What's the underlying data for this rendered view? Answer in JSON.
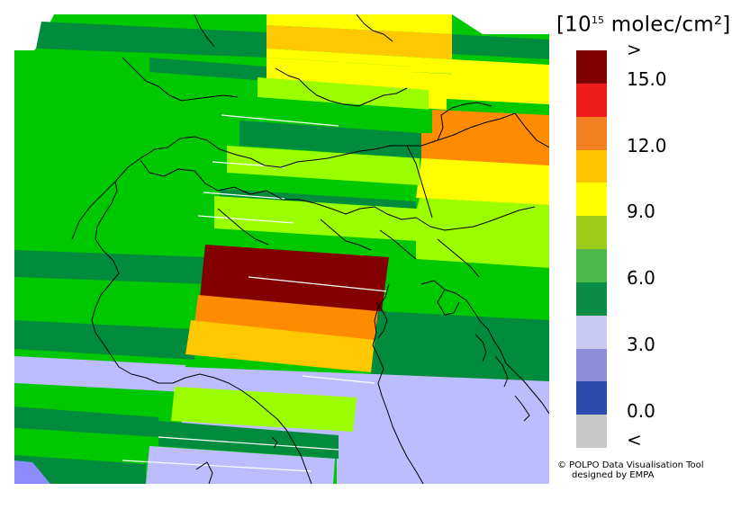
{
  "legend": {
    "unit_prefix": "[10",
    "unit_exponent": "15",
    "unit_suffix": " molec/cm²]",
    "over_label": ">",
    "under_label": "<",
    "tick_labels": [
      "15.0",
      "12.0",
      "9.0",
      "6.0",
      "3.0",
      "0.0"
    ],
    "colors": [
      "#7f0000",
      "#ee1c1c",
      "#f08020",
      "#ffc400",
      "#ffff00",
      "#9ccc1c",
      "#4cb84c",
      "#0a8c44",
      "#c8c8f0",
      "#8c8cd8",
      "#2c4cb0",
      "#c8c8c8"
    ]
  },
  "credits": {
    "line1": "© POLPO Data Visualisation Tool",
    "line2": "designed by EMPA"
  },
  "map": {
    "background_fill": "#00c800",
    "coast_color": "#000000",
    "palette": {
      "dark_green": "#008c3c",
      "green": "#00c800",
      "light_green": "#9cff00",
      "yellow": "#ffff00",
      "amber": "#ffc800",
      "orange": "#ff8c00",
      "dark_red": "#820000",
      "lavender": "#bcbcff",
      "blue_lavender": "#8c8cff"
    }
  }
}
